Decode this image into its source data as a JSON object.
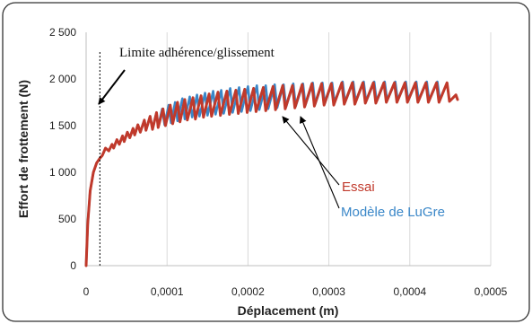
{
  "chart_data": {
    "type": "line",
    "xlabel": "Déplacement (m)",
    "ylabel": "Effort de frottement (N)",
    "xlim": [
      0,
      0.0005
    ],
    "ylim": [
      0,
      2500
    ],
    "x_ticks": [
      0,
      0.0001,
      0.0002,
      0.0003,
      0.0004,
      0.0005
    ],
    "x_tick_labels": [
      "0",
      "0,0001",
      "0,0002",
      "0,0003",
      "0,0004",
      "0,0005"
    ],
    "y_ticks": [
      0,
      500,
      1000,
      1500,
      2000,
      2500
    ],
    "y_tick_labels": [
      "0",
      "500",
      "1 000",
      "1 500",
      "2 000",
      "2 500"
    ],
    "grid": "vertical",
    "series": [
      {
        "name": "Essai",
        "color": "#c0392b",
        "x": [
          0,
          2e-06,
          5e-06,
          9e-06,
          1.3e-05,
          1.7e-05,
          2e-05,
          2.4e-05,
          2.8e-05,
          3.2e-05,
          3.4e-05,
          3.8e-05,
          4.1e-05,
          4.5e-05,
          4.7e-05,
          5.1e-05,
          5.4e-05,
          5.8e-05,
          6e-05,
          6.4e-05,
          6.7e-05,
          7.2e-05,
          7.4e-05,
          7.9e-05,
          8.2e-05,
          8.7e-05,
          8.9e-05,
          9.5e-05,
          9.8e-05,
          0.000104,
          0.000107,
          0.000113,
          0.000116,
          0.000122,
          0.000125,
          0.000132,
          0.000135,
          0.000142,
          0.000145,
          0.000152,
          0.000155,
          0.000163,
          0.000166,
          0.000174,
          0.000177,
          0.000185,
          0.000188,
          0.000196,
          0.000199,
          0.000207,
          0.00021,
          0.000219,
          0.000222,
          0.000231,
          0.000234,
          0.000243,
          0.000246,
          0.000255,
          0.000258,
          0.000267,
          0.00027,
          0.000279,
          0.000282,
          0.000291,
          0.000294,
          0.000303,
          0.000306,
          0.000316,
          0.000319,
          0.000329,
          0.000332,
          0.000342,
          0.000345,
          0.000355,
          0.000358,
          0.000368,
          0.000371,
          0.000381,
          0.000384,
          0.000394,
          0.000397,
          0.000407,
          0.00041,
          0.00042,
          0.000423,
          0.000433,
          0.000436,
          0.000446,
          0.000449,
          0.000457,
          0.000459
        ],
        "y": [
          0,
          450,
          800,
          1000,
          1100,
          1150,
          1180,
          1260,
          1230,
          1300,
          1260,
          1350,
          1300,
          1390,
          1330,
          1430,
          1370,
          1470,
          1400,
          1510,
          1430,
          1560,
          1450,
          1600,
          1460,
          1640,
          1480,
          1680,
          1500,
          1720,
          1520,
          1750,
          1540,
          1780,
          1560,
          1800,
          1570,
          1820,
          1590,
          1840,
          1600,
          1860,
          1610,
          1870,
          1620,
          1880,
          1630,
          1890,
          1640,
          1900,
          1650,
          1910,
          1660,
          1920,
          1670,
          1930,
          1680,
          1930,
          1690,
          1940,
          1700,
          1950,
          1710,
          1950,
          1720,
          1950,
          1720,
          1960,
          1730,
          1960,
          1730,
          1960,
          1740,
          1960,
          1740,
          1960,
          1750,
          1960,
          1750,
          1960,
          1750,
          1960,
          1750,
          1960,
          1750,
          1960,
          1750,
          1960,
          1760,
          1830,
          1780
        ]
      },
      {
        "name": "Modèle de LuGre",
        "color": "#3a87c8",
        "x": [
          0,
          2e-06,
          5e-06,
          9e-06,
          1.3e-05,
          1.7e-05,
          2e-05,
          2.4e-05,
          2.8e-05,
          3.2e-05,
          3.4e-05,
          3.8e-05,
          4.1e-05,
          4.5e-05,
          4.7e-05,
          5.1e-05,
          5.4e-05,
          5.8e-05,
          6e-05,
          6.4e-05,
          6.7e-05,
          7.2e-05,
          7.4e-05,
          7.9e-05,
          8.2e-05,
          8.7e-05,
          8.9e-05,
          9.4e-05,
          9.7e-05,
          0.000102,
          0.000105,
          0.00011,
          0.000113,
          0.000119,
          0.000122,
          0.000128,
          0.000131,
          0.000137,
          0.00014,
          0.000147,
          0.00015,
          0.000157,
          0.00016,
          0.000167,
          0.00017,
          0.000178,
          0.000181,
          0.000189,
          0.000192,
          0.0002,
          0.000203,
          0.000211,
          0.000214,
          0.000222,
          0.000225,
          0.000233,
          0.000236,
          0.000244,
          0.000247,
          0.000256,
          0.000259,
          0.000268,
          0.000271,
          0.00028,
          0.000283,
          0.000292,
          0.000295,
          0.000304,
          0.000307,
          0.000317,
          0.00032,
          0.00033,
          0.000333,
          0.000343,
          0.000346,
          0.000356,
          0.000359,
          0.000369,
          0.000372,
          0.000382,
          0.000385,
          0.000395,
          0.000398,
          0.000408,
          0.000411,
          0.000421,
          0.000424,
          0.000434,
          0.000437
        ],
        "y": [
          0,
          450,
          800,
          1000,
          1100,
          1150,
          1180,
          1260,
          1230,
          1300,
          1260,
          1350,
          1300,
          1390,
          1330,
          1430,
          1370,
          1470,
          1400,
          1510,
          1430,
          1560,
          1450,
          1600,
          1470,
          1640,
          1490,
          1680,
          1510,
          1720,
          1530,
          1750,
          1550,
          1790,
          1570,
          1810,
          1590,
          1830,
          1600,
          1850,
          1610,
          1870,
          1620,
          1880,
          1630,
          1900,
          1640,
          1910,
          1650,
          1920,
          1660,
          1930,
          1670,
          1930,
          1680,
          1940,
          1690,
          1940,
          1700,
          1950,
          1710,
          1950,
          1720,
          1960,
          1730,
          1960,
          1740,
          1960,
          1750,
          1970,
          1750,
          1970,
          1760,
          1970,
          1760,
          1970,
          1760,
          1970,
          1770,
          1970,
          1770,
          1970,
          1770,
          1970,
          1770,
          1970,
          1770,
          1970,
          1780
        ]
      }
    ],
    "annotations": {
      "limit_label": "Limite adhérence/glissement",
      "limit_x": 1.7e-05,
      "essai_label": "Essai",
      "lugre_label": "Modèle de LuGre"
    },
    "colors": {
      "essai": "#c0392b",
      "lugre": "#3a87c8",
      "grid": "#d9d9d9",
      "frame": "#333333"
    }
  }
}
